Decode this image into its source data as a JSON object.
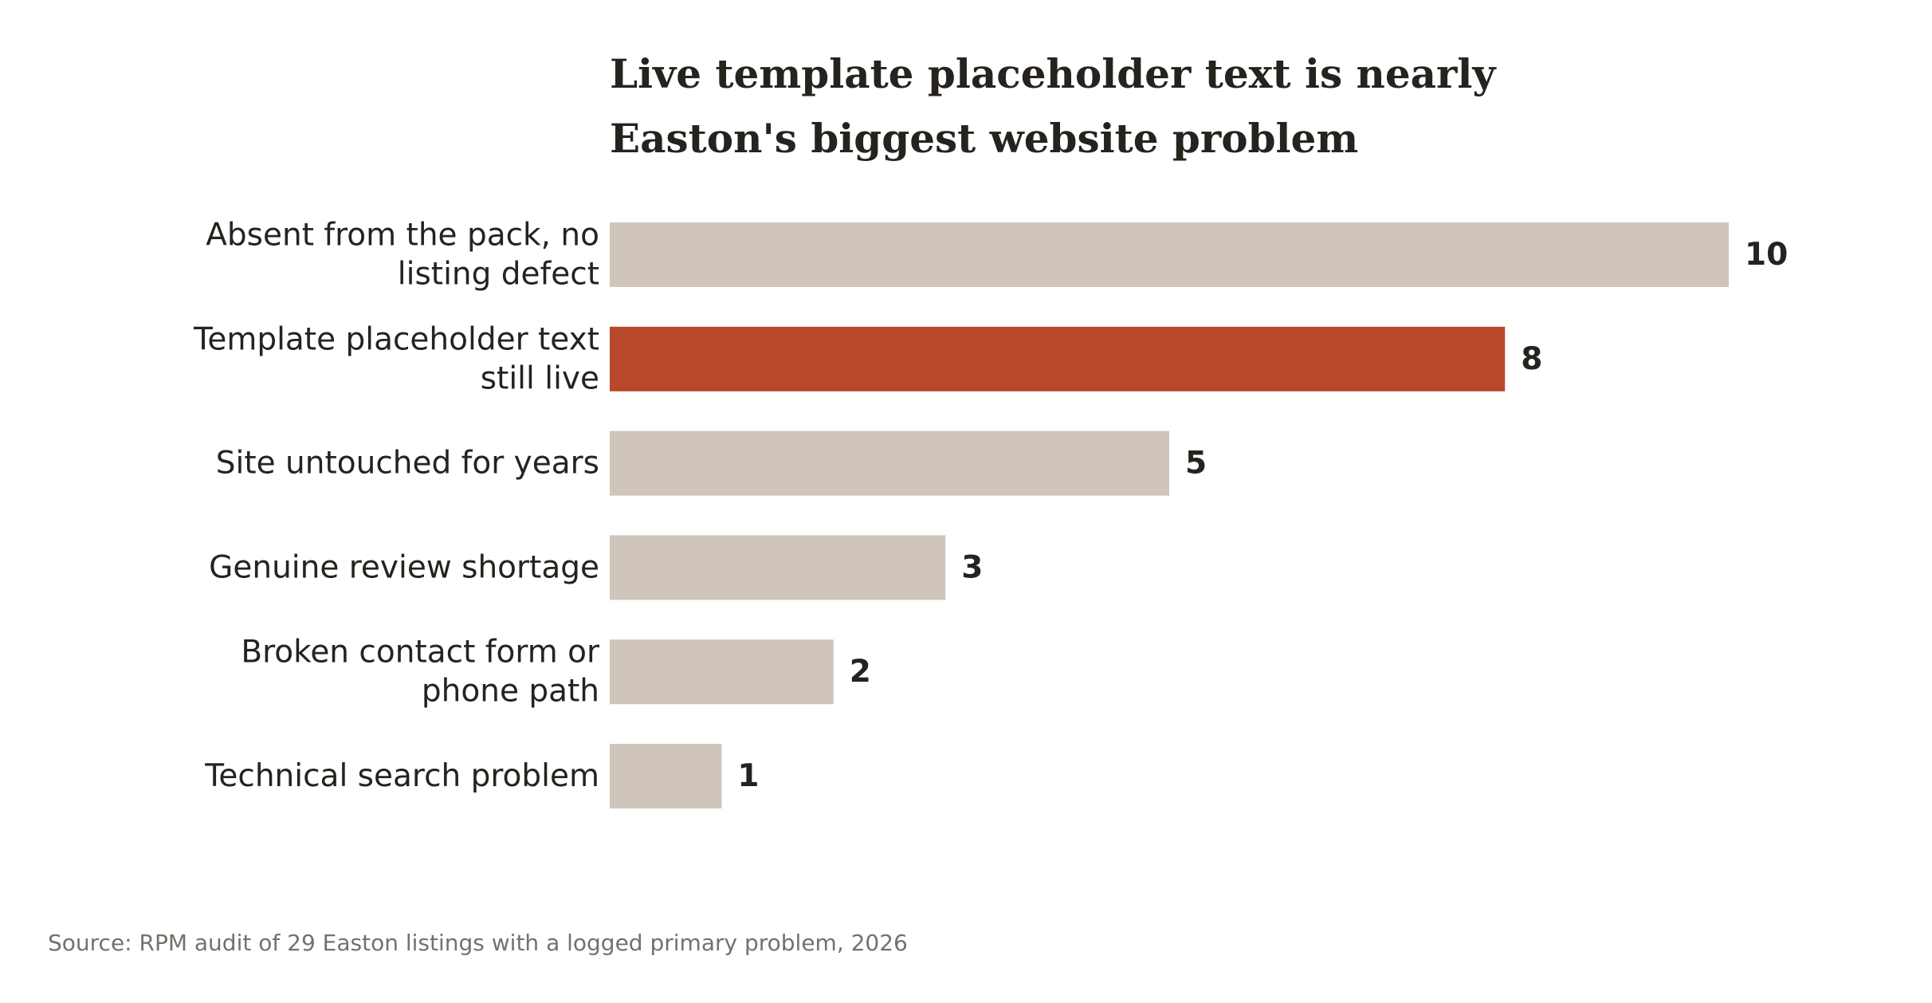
{
  "chart_data": {
    "type": "bar",
    "orientation": "horizontal",
    "title": [
      "Live template placeholder text is nearly",
      "Easton's biggest website problem"
    ],
    "categories": [
      [
        "Absent from the pack, no",
        "listing defect"
      ],
      [
        "Template placeholder text",
        "still live"
      ],
      [
        "Site untouched for years"
      ],
      [
        "Genuine review shortage"
      ],
      [
        "Broken contact form or",
        "phone path"
      ],
      [
        "Technical search problem"
      ]
    ],
    "values": [
      10,
      8,
      5,
      3,
      2,
      1
    ],
    "highlight_index": 1,
    "xlim": [
      0,
      10
    ],
    "xlabel": "",
    "ylabel": "",
    "grid": false,
    "legend": "none",
    "colors": {
      "bar": "#cfc5bb",
      "highlight": "#b8482b",
      "text": "#26231f",
      "source": "#77706a"
    }
  },
  "source": "Source: RPM audit of 29 Easton listings with a logged primary problem, 2026"
}
